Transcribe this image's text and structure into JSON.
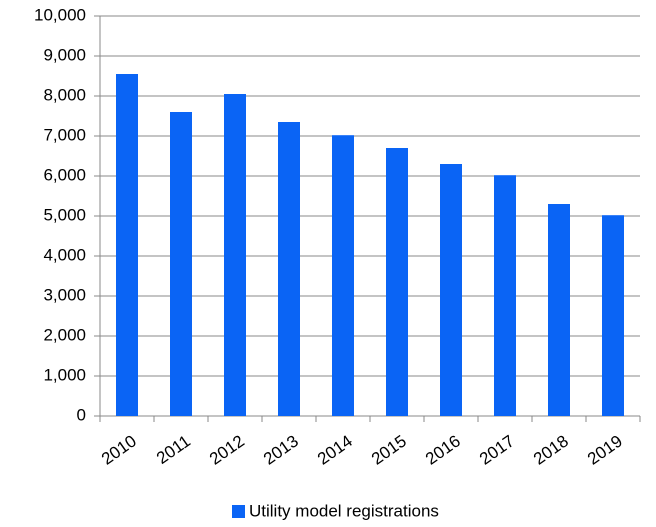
{
  "chart_data": {
    "type": "bar",
    "categories": [
      "2010",
      "2011",
      "2012",
      "2013",
      "2014",
      "2015",
      "2016",
      "2017",
      "2018",
      "2019"
    ],
    "series": [
      {
        "name": "Utility model registrations",
        "color": "#0a64f5",
        "values": [
          8550,
          7600,
          8050,
          7350,
          7020,
          6700,
          6300,
          6020,
          5300,
          5020
        ]
      }
    ],
    "ylim": [
      0,
      10000
    ],
    "yticks": [
      0,
      {
        "value": 1000,
        "label": "1,000"
      },
      {
        "value": 2000,
        "label": "2,000"
      },
      {
        "value": 3000,
        "label": "3,000"
      },
      {
        "value": 4000,
        "label": "4,000"
      },
      {
        "value": 5000,
        "label": "5,000"
      },
      {
        "value": 6000,
        "label": "6,000"
      },
      {
        "value": 7000,
        "label": "7,000"
      },
      {
        "value": 8000,
        "label": "8,000"
      },
      {
        "value": 9000,
        "label": "9,000"
      },
      {
        "value": 10000,
        "label": "10,000"
      }
    ],
    "grid": true,
    "legend": "bottom"
  }
}
